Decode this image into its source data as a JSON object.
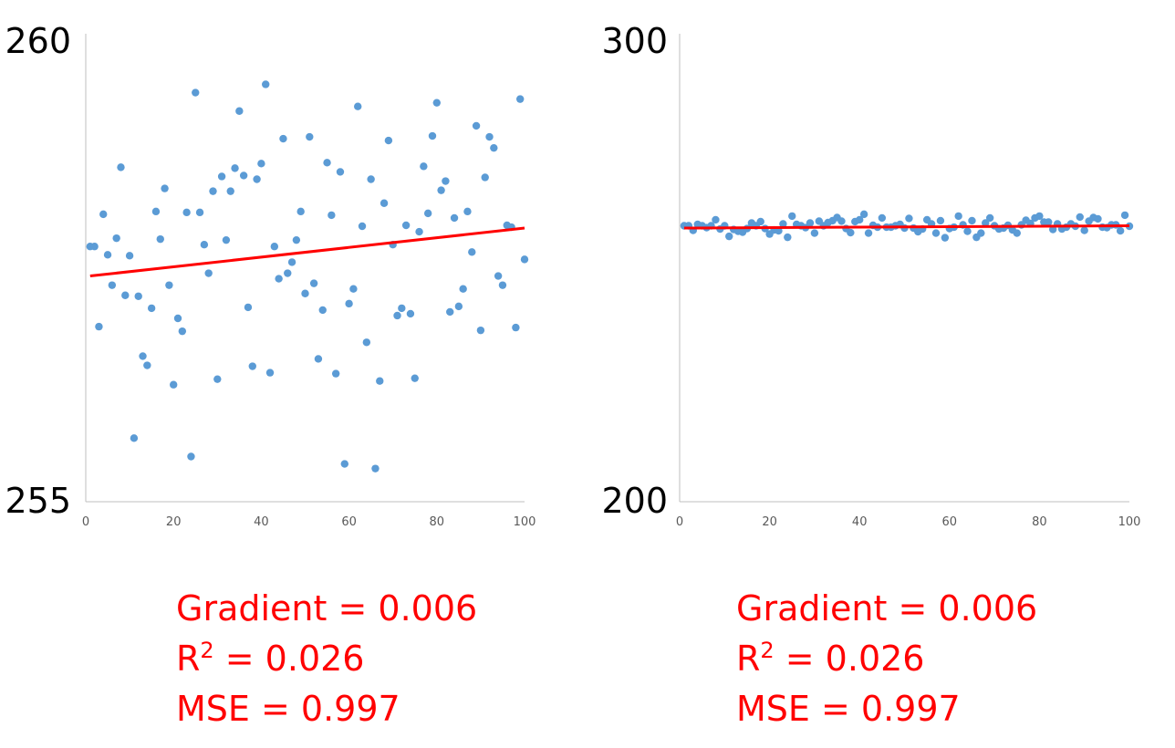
{
  "chart_data": [
    {
      "type": "scatter",
      "ylim": [
        255,
        260
      ],
      "xlim": [
        0,
        100
      ],
      "y_ticks": [
        "255",
        "260"
      ],
      "x_ticks": [
        "0",
        "20",
        "40",
        "60",
        "80",
        "100"
      ],
      "grid": false,
      "point_color": "#5b9bd5",
      "trend_color": "#ff0000",
      "trendline": {
        "x": [
          1,
          100
        ],
        "y": [
          257.45,
          257.97
        ]
      },
      "x": [
        1,
        2,
        3,
        4,
        5,
        6,
        7,
        8,
        9,
        10,
        11,
        12,
        13,
        14,
        15,
        16,
        17,
        18,
        19,
        20,
        21,
        22,
        23,
        24,
        25,
        26,
        27,
        28,
        29,
        30,
        31,
        32,
        33,
        34,
        35,
        36,
        37,
        38,
        39,
        40,
        41,
        42,
        43,
        44,
        45,
        46,
        47,
        48,
        49,
        50,
        51,
        52,
        53,
        54,
        55,
        56,
        57,
        58,
        59,
        60,
        61,
        62,
        63,
        64,
        65,
        66,
        67,
        68,
        69,
        70,
        71,
        72,
        73,
        74,
        75,
        76,
        77,
        78,
        79,
        80,
        81,
        82,
        83,
        84,
        85,
        86,
        87,
        88,
        89,
        90,
        91,
        92,
        93,
        94,
        95,
        96,
        97,
        98,
        99,
        100
      ],
      "y": [
        257.77,
        257.77,
        256.9,
        258.12,
        257.68,
        257.35,
        257.86,
        258.63,
        257.24,
        257.67,
        255.69,
        257.23,
        256.58,
        256.48,
        257.1,
        258.15,
        257.85,
        258.4,
        257.35,
        256.27,
        256.99,
        256.85,
        258.14,
        255.49,
        259.44,
        258.14,
        257.79,
        257.48,
        258.37,
        256.33,
        258.53,
        257.84,
        258.37,
        258.62,
        259.24,
        258.54,
        257.11,
        256.47,
        258.5,
        258.67,
        259.53,
        256.4,
        257.77,
        257.42,
        258.94,
        257.48,
        257.6,
        257.84,
        258.15,
        257.26,
        258.96,
        257.37,
        256.55,
        257.08,
        258.68,
        258.11,
        256.39,
        258.58,
        255.41,
        257.15,
        257.31,
        259.29,
        257.99,
        256.73,
        258.5,
        255.36,
        256.31,
        258.24,
        258.92,
        257.79,
        257.02,
        257.1,
        258.0,
        257.04,
        256.34,
        257.93,
        258.64,
        258.13,
        258.97,
        259.33,
        258.38,
        258.48,
        257.06,
        258.08,
        257.12,
        257.31,
        258.15,
        257.71,
        259.08,
        256.86,
        258.52,
        258.96,
        258.84,
        257.45,
        257.35,
        258.0,
        257.98,
        256.89,
        259.37,
        257.63
      ]
    },
    {
      "type": "scatter",
      "ylim": [
        200,
        300
      ],
      "xlim": [
        0,
        100
      ],
      "y_ticks": [
        "200",
        "300"
      ],
      "x_ticks": [
        "0",
        "20",
        "40",
        "60",
        "80",
        "100"
      ],
      "grid": false,
      "point_color": "#5b9bd5",
      "trend_color": "#ff0000",
      "trendline": {
        "x": [
          1,
          100
        ],
        "y": [
          259.4,
          259.9
        ]
      },
      "x": [
        1,
        2,
        3,
        4,
        5,
        6,
        7,
        8,
        9,
        10,
        11,
        12,
        13,
        14,
        15,
        16,
        17,
        18,
        19,
        20,
        21,
        22,
        23,
        24,
        25,
        26,
        27,
        28,
        29,
        30,
        31,
        32,
        33,
        34,
        35,
        36,
        37,
        38,
        39,
        40,
        41,
        42,
        43,
        44,
        45,
        46,
        47,
        48,
        49,
        50,
        51,
        52,
        53,
        54,
        55,
        56,
        57,
        58,
        59,
        60,
        61,
        62,
        63,
        64,
        65,
        66,
        67,
        68,
        69,
        70,
        71,
        72,
        73,
        74,
        75,
        76,
        77,
        78,
        79,
        80,
        81,
        82,
        83,
        84,
        85,
        86,
        87,
        88,
        89,
        90,
        91,
        92,
        93,
        94,
        95,
        96,
        97,
        98,
        99,
        100
      ],
      "y": [
        259.9,
        259.9,
        258.9,
        260.2,
        259.9,
        259.5,
        259.9,
        261.2,
        259.2,
        259.9,
        257.6,
        259.1,
        258.7,
        258.5,
        259.3,
        260.5,
        259.9,
        260.8,
        259.3,
        258.1,
        259.0,
        258.8,
        260.3,
        257.4,
        262.0,
        260.2,
        259.9,
        259.5,
        260.5,
        258.3,
        260.9,
        259.9,
        260.6,
        261.0,
        261.7,
        260.9,
        259.3,
        258.4,
        260.8,
        261.2,
        262.4,
        258.3,
        260.0,
        259.6,
        261.6,
        259.6,
        259.6,
        259.9,
        260.2,
        259.4,
        261.5,
        259.4,
        258.6,
        259.2,
        261.2,
        260.3,
        258.3,
        261.0,
        257.3,
        259.3,
        259.6,
        262.0,
        260.1,
        258.7,
        261.0,
        257.4,
        258.3,
        260.5,
        261.6,
        259.9,
        259.2,
        259.4,
        260.0,
        259.0,
        258.3,
        260.1,
        261.1,
        260.4,
        261.6,
        262.0,
        260.7,
        260.7,
        259.1,
        260.3,
        259.2,
        259.6,
        260.3,
        259.8,
        261.8,
        258.9,
        260.9,
        261.7,
        261.4,
        259.6,
        259.5,
        260.1,
        260.1,
        258.8,
        262.2,
        259.8
      ]
    }
  ],
  "stats_left": {
    "gradient": "Gradient = 0.006",
    "r2_prefix": "R",
    "r2_sup": "2",
    "r2_value": " = 0.026",
    "mse": "MSE = 0.997"
  },
  "stats_right": {
    "gradient": "Gradient = 0.006",
    "r2_prefix": "R",
    "r2_sup": "2",
    "r2_value": " = 0.026",
    "mse": "MSE = 0.997"
  }
}
